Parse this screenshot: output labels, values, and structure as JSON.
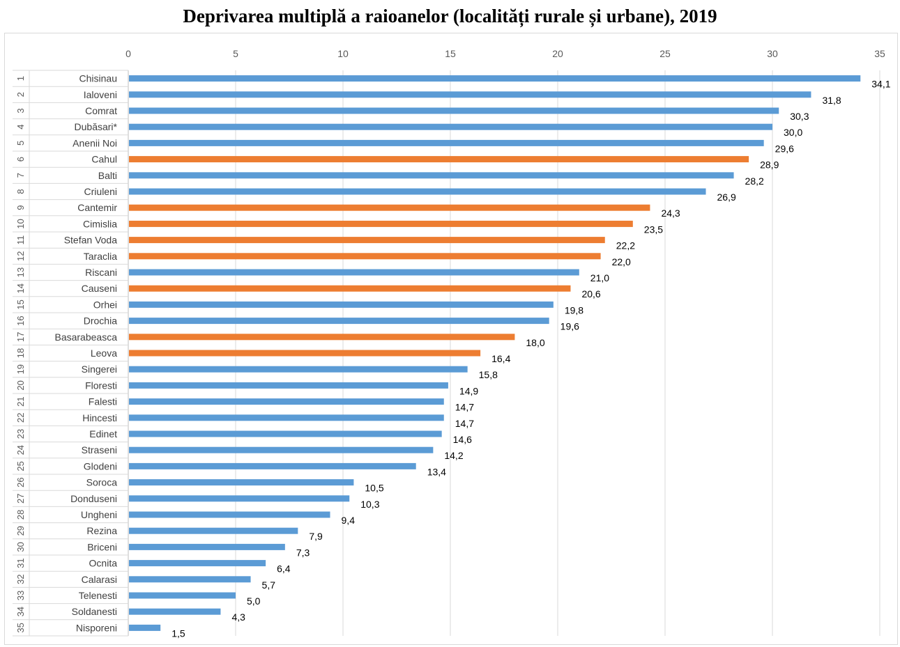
{
  "chart_data": {
    "type": "bar",
    "orientation": "horizontal",
    "title": "Deprivarea multiplă a raioanelor (localități rurale și urbane), 2019",
    "xlim": [
      0,
      35
    ],
    "x_ticks": [
      0,
      5,
      10,
      15,
      20,
      25,
      30,
      35
    ],
    "x_axis_position": "top",
    "grid": true,
    "legend": "none",
    "colors": {
      "blue": "#5b9bd5",
      "orange": "#ed7d31"
    },
    "ranks": [
      "1",
      "2",
      "3",
      "4",
      "5",
      "6",
      "7",
      "8",
      "9",
      "10",
      "11",
      "12",
      "13",
      "14",
      "15",
      "16",
      "17",
      "18",
      "19",
      "20",
      "21",
      "22",
      "23",
      "24",
      "25",
      "26",
      "27",
      "28",
      "29",
      "30",
      "31",
      "32",
      "33",
      "34",
      "35"
    ],
    "categories": [
      "Chisinau",
      "Ialoveni",
      "Comrat",
      "Dubăsari*",
      "Anenii Noi",
      "Cahul",
      "Balti",
      "Criuleni",
      "Cantemir",
      "Cimislia",
      "Stefan Voda",
      "Taraclia",
      "Riscani",
      "Causeni",
      "Orhei",
      "Drochia",
      "Basarabeasca",
      "Leova",
      "Singerei",
      "Floresti",
      "Falesti",
      "Hincesti",
      "Edinet",
      "Straseni",
      "Glodeni",
      "Soroca",
      "Donduseni",
      "Ungheni",
      "Rezina",
      "Briceni",
      "Ocnita",
      "Calarasi",
      "Telenesti",
      "Soldanesti",
      "Nisporeni"
    ],
    "values": [
      34.1,
      31.8,
      30.3,
      30.0,
      29.6,
      28.9,
      28.2,
      26.9,
      24.3,
      23.5,
      22.2,
      22.0,
      21.0,
      20.6,
      19.8,
      19.6,
      18.0,
      16.4,
      15.8,
      14.9,
      14.7,
      14.7,
      14.6,
      14.2,
      13.4,
      10.5,
      10.3,
      9.4,
      7.9,
      7.3,
      6.4,
      5.7,
      5.0,
      4.3,
      1.5
    ],
    "value_labels": [
      "34,1",
      "31,8",
      "30,3",
      "30,0",
      "29,6",
      "28,9",
      "28,2",
      "26,9",
      "24,3",
      "23,5",
      "22,2",
      "22,0",
      "21,0",
      "20,6",
      "19,8",
      "19,6",
      "18,0",
      "16,4",
      "15,8",
      "14,9",
      "14,7",
      "14,7",
      "14,6",
      "14,2",
      "13,4",
      "10,5",
      "10,3",
      "9,4",
      "7,9",
      "7,3",
      "6,4",
      "5,7",
      "5,0",
      "4,3",
      "1,5"
    ],
    "bar_colors": [
      "blue",
      "blue",
      "blue",
      "blue",
      "blue",
      "orange",
      "blue",
      "blue",
      "orange",
      "orange",
      "orange",
      "orange",
      "blue",
      "orange",
      "blue",
      "blue",
      "orange",
      "orange",
      "blue",
      "blue",
      "blue",
      "blue",
      "blue",
      "blue",
      "blue",
      "blue",
      "blue",
      "blue",
      "blue",
      "blue",
      "blue",
      "blue",
      "blue",
      "blue",
      "blue"
    ]
  }
}
